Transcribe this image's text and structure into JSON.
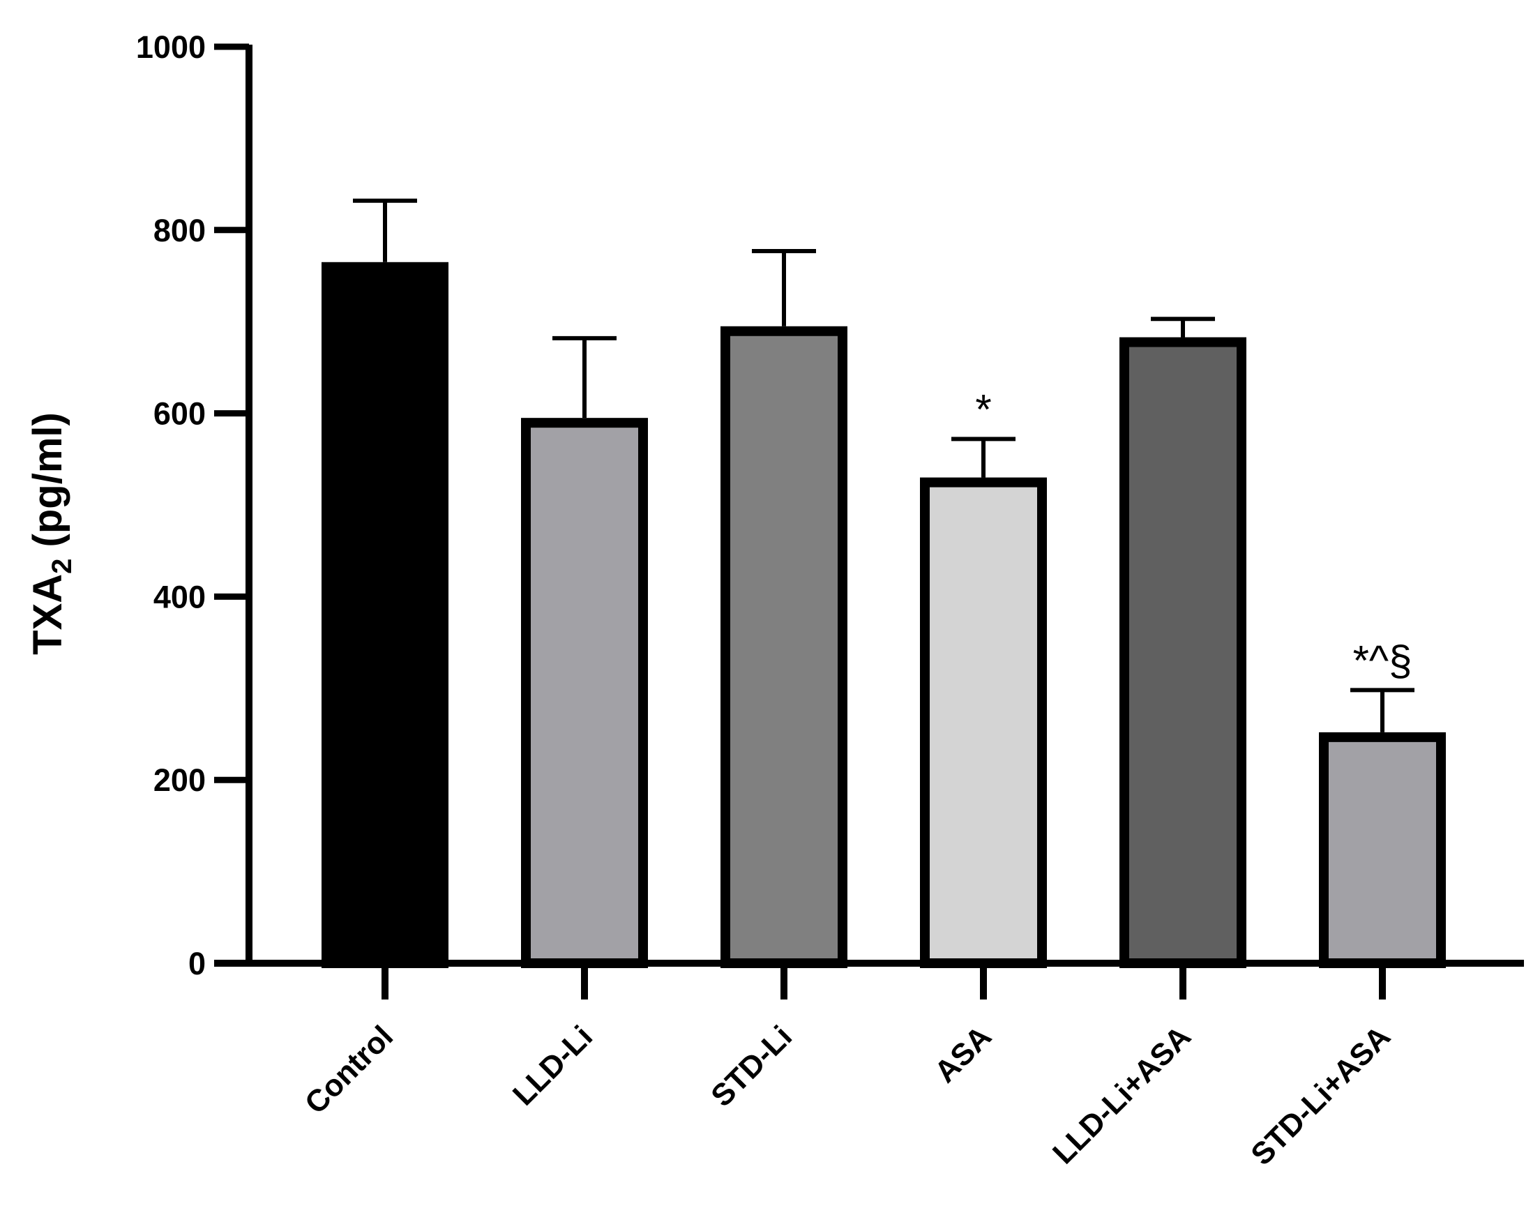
{
  "chart_data": {
    "type": "bar",
    "title": "",
    "xlabel": "",
    "ylabel": {
      "main": "TXA",
      "sub": "2",
      "unit": " (pg/ml)"
    },
    "ylim": [
      0,
      1000
    ],
    "yticks": [
      "0",
      "200",
      "400",
      "600",
      "800",
      "1000"
    ],
    "grid": false,
    "categories": [
      "Control",
      "LLD-Li",
      "STD-Li",
      "ASA",
      "LLD-Li+ASA",
      "STD-Li+ASA"
    ],
    "values": [
      765,
      595,
      695,
      530,
      683,
      252
    ],
    "errors": [
      67,
      87,
      82,
      42,
      20,
      46
    ],
    "annotations": [
      "",
      "",
      "",
      "*",
      "",
      "*^§"
    ],
    "colors": [
      "#000000",
      "#a2a1a6",
      "#808080",
      "#d4d4d4",
      "#606060",
      "#a2a1a6"
    ]
  }
}
